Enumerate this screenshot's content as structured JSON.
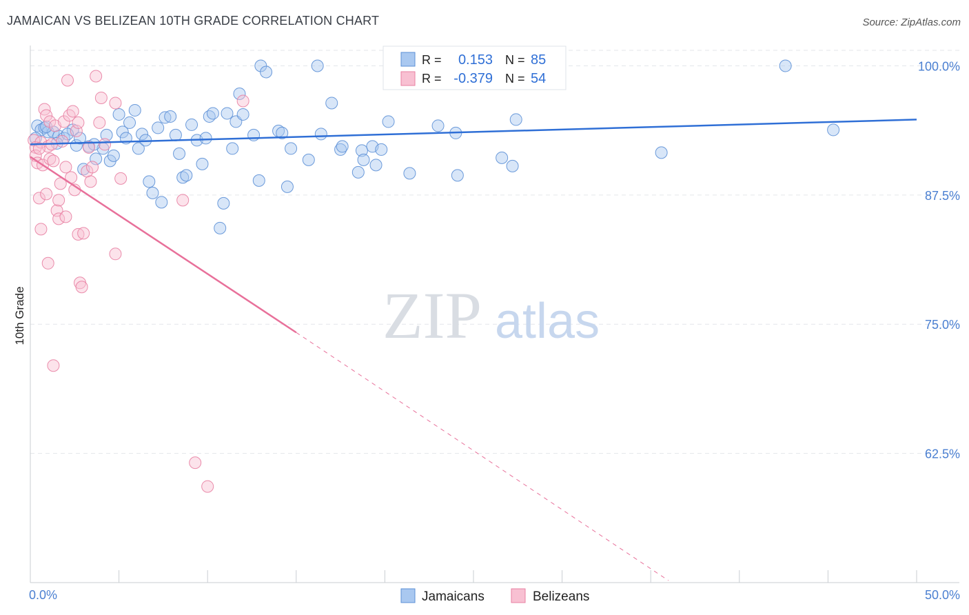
{
  "header": {
    "title": "JAMAICAN VS BELIZEAN 10TH GRADE CORRELATION CHART",
    "source": "Source: ZipAtlas.com"
  },
  "watermark": {
    "zip": "ZIP",
    "atlas": "atlas"
  },
  "stats": {
    "rows": [
      {
        "r_label": "R =",
        "r_value": "0.153",
        "n_label": "N =",
        "n_value": "85",
        "color": "#a9c8f0",
        "stroke": "#5b8fd6"
      },
      {
        "r_label": "R =",
        "r_value": "-0.379",
        "n_label": "N =",
        "n_value": "54",
        "color": "#f8c0d2",
        "stroke": "#e87fa2"
      }
    ]
  },
  "chart_data": {
    "type": "scatter",
    "ylabel": "10th Grade",
    "xlim": [
      0,
      50
    ],
    "ylim": [
      50,
      101.5
    ],
    "x_tick_labels": [
      "0.0%",
      "50.0%"
    ],
    "y_ticks": [
      {
        "value": 100,
        "label": "100.0%"
      },
      {
        "value": 87.5,
        "label": "87.5%"
      },
      {
        "value": 75,
        "label": "75.0%"
      },
      {
        "value": 62.5,
        "label": "62.5%"
      }
    ],
    "grid": true,
    "legend": [
      "Jamaicans",
      "Belizeans"
    ],
    "series": [
      {
        "name": "Jamaicans",
        "color": "#a9c8f0",
        "stroke": "#5b8fd6",
        "trend": {
          "x0": 0,
          "y0": 92.4,
          "x1": 50,
          "y1": 94.8,
          "color": "#2f6fd6"
        },
        "points": [
          [
            0.4,
            94.2
          ],
          [
            0.6,
            93.8
          ],
          [
            0.8,
            94.0
          ],
          [
            1.0,
            93.6
          ],
          [
            1.3,
            93.6
          ],
          [
            1.6,
            93.2
          ],
          [
            1.9,
            93.0
          ],
          [
            2.4,
            93.8
          ],
          [
            2.6,
            92.3
          ],
          [
            2.8,
            93.0
          ],
          [
            3.0,
            90.0
          ],
          [
            3.3,
            92.2
          ],
          [
            3.7,
            91.0
          ],
          [
            4.1,
            92.0
          ],
          [
            4.3,
            93.3
          ],
          [
            4.5,
            90.8
          ],
          [
            4.7,
            91.3
          ],
          [
            5.0,
            95.3
          ],
          [
            5.2,
            93.6
          ],
          [
            5.4,
            93.0
          ],
          [
            5.6,
            94.5
          ],
          [
            5.9,
            95.7
          ],
          [
            6.1,
            92.0
          ],
          [
            6.3,
            93.4
          ],
          [
            6.5,
            92.8
          ],
          [
            6.7,
            88.8
          ],
          [
            6.9,
            87.7
          ],
          [
            7.2,
            94.0
          ],
          [
            7.4,
            86.8
          ],
          [
            7.6,
            95.0
          ],
          [
            7.9,
            95.1
          ],
          [
            8.2,
            93.3
          ],
          [
            8.4,
            91.5
          ],
          [
            8.6,
            89.2
          ],
          [
            8.8,
            89.4
          ],
          [
            9.1,
            94.3
          ],
          [
            9.4,
            92.8
          ],
          [
            9.7,
            90.5
          ],
          [
            9.9,
            93.0
          ],
          [
            10.1,
            95.1
          ],
          [
            10.3,
            95.4
          ],
          [
            10.7,
            84.3
          ],
          [
            10.9,
            86.7
          ],
          [
            11.1,
            95.4
          ],
          [
            11.4,
            92.0
          ],
          [
            11.6,
            94.6
          ],
          [
            11.8,
            97.3
          ],
          [
            12.0,
            95.3
          ],
          [
            12.6,
            93.3
          ],
          [
            12.9,
            88.9
          ],
          [
            13.0,
            100.0
          ],
          [
            13.3,
            99.4
          ],
          [
            14.0,
            93.7
          ],
          [
            14.2,
            93.5
          ],
          [
            14.5,
            88.3
          ],
          [
            14.7,
            92.0
          ],
          [
            15.7,
            90.9
          ],
          [
            16.2,
            100.0
          ],
          [
            16.4,
            93.4
          ],
          [
            17.0,
            96.4
          ],
          [
            17.5,
            91.9
          ],
          [
            17.6,
            92.2
          ],
          [
            18.5,
            89.7
          ],
          [
            18.7,
            91.8
          ],
          [
            18.8,
            90.9
          ],
          [
            19.3,
            92.2
          ],
          [
            19.5,
            90.4
          ],
          [
            19.8,
            91.9
          ],
          [
            20.2,
            94.6
          ],
          [
            21.4,
            89.6
          ],
          [
            23.0,
            94.2
          ],
          [
            24.1,
            89.4
          ],
          [
            24.0,
            93.5
          ],
          [
            26.6,
            91.1
          ],
          [
            27.2,
            90.3
          ],
          [
            27.4,
            94.8
          ],
          [
            27.7,
            100.0
          ],
          [
            35.6,
            91.6
          ],
          [
            42.6,
            100.0
          ],
          [
            45.3,
            93.8
          ],
          [
            0.3,
            93.0
          ],
          [
            0.9,
            94.1
          ],
          [
            1.5,
            92.5
          ],
          [
            2.1,
            93.4
          ],
          [
            3.6,
            92.4
          ]
        ]
      },
      {
        "name": "Belizeans",
        "color": "#f8c0d2",
        "stroke": "#e87fa2",
        "trend": {
          "x0": 0,
          "y0": 91.2,
          "x1": 15,
          "y1": 74.2,
          "dash_x1": 36,
          "dash_y1": 50.2,
          "color": "#e8709a"
        },
        "points": [
          [
            0.2,
            92.8
          ],
          [
            0.3,
            92.1
          ],
          [
            0.3,
            91.3
          ],
          [
            0.4,
            90.6
          ],
          [
            0.5,
            87.2
          ],
          [
            0.6,
            92.6
          ],
          [
            0.6,
            84.2
          ],
          [
            0.7,
            90.4
          ],
          [
            0.8,
            95.8
          ],
          [
            0.9,
            95.2
          ],
          [
            0.9,
            87.6
          ],
          [
            1.0,
            92.2
          ],
          [
            1.1,
            91.0
          ],
          [
            1.1,
            94.6
          ],
          [
            1.2,
            92.4
          ],
          [
            1.3,
            90.8
          ],
          [
            1.4,
            94.2
          ],
          [
            1.5,
            86.0
          ],
          [
            1.6,
            87.0
          ],
          [
            1.6,
            85.2
          ],
          [
            1.7,
            88.6
          ],
          [
            1.8,
            92.7
          ],
          [
            1.9,
            94.6
          ],
          [
            2.0,
            85.4
          ],
          [
            2.1,
            98.6
          ],
          [
            2.2,
            95.2
          ],
          [
            2.3,
            89.2
          ],
          [
            2.4,
            95.6
          ],
          [
            2.5,
            88.0
          ],
          [
            2.6,
            93.7
          ],
          [
            2.7,
            94.5
          ],
          [
            2.7,
            83.7
          ],
          [
            2.8,
            79.0
          ],
          [
            2.9,
            78.6
          ],
          [
            3.0,
            83.8
          ],
          [
            3.2,
            89.8
          ],
          [
            3.3,
            92.1
          ],
          [
            3.5,
            90.2
          ],
          [
            3.7,
            99.0
          ],
          [
            3.9,
            94.5
          ],
          [
            4.0,
            96.9
          ],
          [
            4.2,
            92.4
          ],
          [
            4.8,
            96.4
          ],
          [
            4.8,
            81.8
          ],
          [
            5.1,
            89.1
          ],
          [
            8.6,
            87.0
          ],
          [
            9.3,
            61.6
          ],
          [
            10.0,
            59.3
          ],
          [
            12.0,
            96.6
          ],
          [
            1.0,
            80.9
          ],
          [
            1.3,
            71.0
          ],
          [
            2.0,
            90.2
          ],
          [
            0.5,
            92.0
          ],
          [
            3.4,
            88.8
          ]
        ]
      }
    ]
  }
}
